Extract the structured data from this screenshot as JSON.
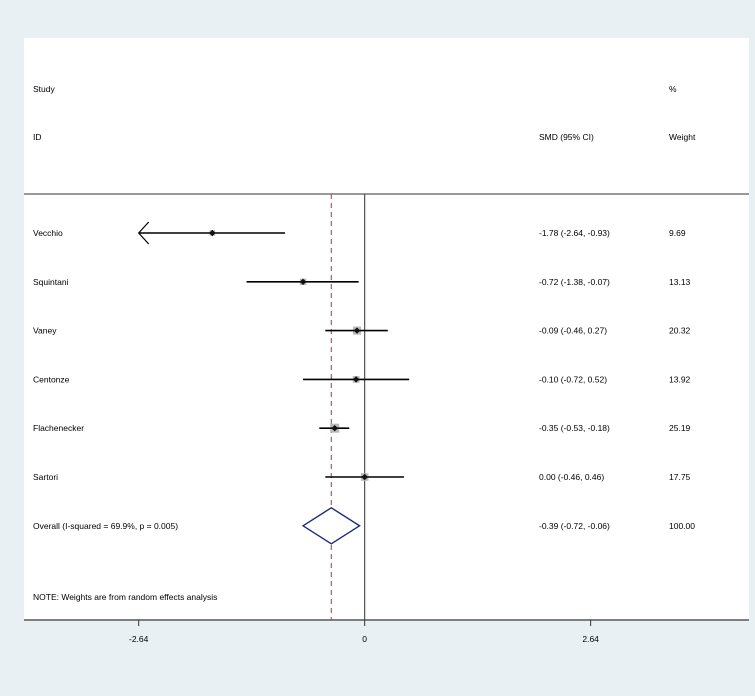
{
  "header": {
    "study_line1": "Study",
    "study_line2": "ID",
    "effect_label": "SMD (95% CI)",
    "weight_line1": "%",
    "weight_line2": "Weight"
  },
  "note": "NOTE: Weights are from random effects analysis",
  "colors": {
    "background": "#e8f0f3",
    "plot_background": "#ffffff",
    "ci_line": "#000000",
    "weight_box": "#b9b9b9",
    "overall_diamond": "#1a2a7a",
    "overall_line": "#b04a5a"
  },
  "chart_data": {
    "type": "forest",
    "x_axis": {
      "range": [
        -3.98,
        4.49
      ],
      "ticks": [
        -2.64,
        0,
        2.64
      ],
      "tick_labels": [
        "-2.64",
        "0",
        "2.64"
      ],
      "xlabel": ""
    },
    "reference_line": 0,
    "overall_line": -0.39,
    "studies": [
      {
        "name": "Vecchio",
        "estimate": -1.78,
        "lower": -2.64,
        "upper": -0.93,
        "label": "-1.78 (-2.64, -0.93)",
        "weight": 9.69,
        "weight_label": "9.69",
        "clipped_left": true
      },
      {
        "name": "Squintani",
        "estimate": -0.72,
        "lower": -1.38,
        "upper": -0.07,
        "label": "-0.72 (-1.38, -0.07)",
        "weight": 13.13,
        "weight_label": "13.13"
      },
      {
        "name": "Vaney",
        "estimate": -0.09,
        "lower": -0.46,
        "upper": 0.27,
        "label": "-0.09 (-0.46, 0.27)",
        "weight": 20.32,
        "weight_label": "20.32"
      },
      {
        "name": "Centonze",
        "estimate": -0.1,
        "lower": -0.72,
        "upper": 0.52,
        "label": "-0.10 (-0.72, 0.52)",
        "weight": 13.92,
        "weight_label": "13.92"
      },
      {
        "name": "Flachenecker",
        "estimate": -0.35,
        "lower": -0.53,
        "upper": -0.18,
        "label": "-0.35 (-0.53, -0.18)",
        "weight": 25.19,
        "weight_label": "25.19"
      },
      {
        "name": "Sartori",
        "estimate": 0.0,
        "lower": -0.46,
        "upper": 0.46,
        "label": "0.00 (-0.46, 0.46)",
        "weight": 17.75,
        "weight_label": "17.75"
      }
    ],
    "overall": {
      "name": "Overall  (I-squared = 69.9%, p = 0.005)",
      "estimate": -0.39,
      "lower": -0.72,
      "upper": -0.06,
      "label": "-0.39 (-0.72, -0.06)",
      "weight_label": "100.00"
    }
  }
}
